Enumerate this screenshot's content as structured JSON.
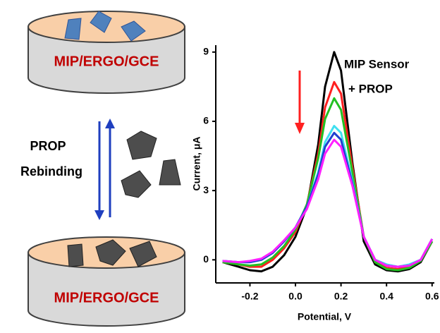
{
  "diagram": {
    "top_label": "MIP/ERGO/GCE",
    "prop_text": "PROP",
    "rebinding_text": "Rebinding",
    "bottom_label": "MIP/ERGO/GCE"
  },
  "chart_data": {
    "type": "line",
    "xlabel": "Potential, V",
    "ylabel": "Current, μA",
    "annotations": [
      "MIP Sensor",
      "+ PROP"
    ],
    "x": [
      -0.32,
      -0.25,
      -0.2,
      -0.15,
      -0.1,
      -0.05,
      0.0,
      0.05,
      0.1,
      0.13,
      0.17,
      0.2,
      0.25,
      0.3,
      0.35,
      0.4,
      0.45,
      0.5,
      0.55,
      0.6
    ],
    "series": [
      {
        "color": "#000000",
        "values": [
          -0.1,
          -0.3,
          -0.45,
          -0.5,
          -0.3,
          0.2,
          1.0,
          2.3,
          5.0,
          7.5,
          9.0,
          8.2,
          4.2,
          0.8,
          -0.2,
          -0.45,
          -0.5,
          -0.4,
          -0.1,
          0.8
        ]
      },
      {
        "color": "#ff2020",
        "values": [
          -0.1,
          -0.2,
          -0.3,
          -0.3,
          0,
          0.5,
          1.2,
          2.4,
          4.6,
          6.6,
          7.7,
          7.2,
          4.0,
          1.0,
          -0.1,
          -0.35,
          -0.4,
          -0.3,
          -0.05,
          0.8
        ]
      },
      {
        "color": "#22c022",
        "values": [
          -0.1,
          -0.2,
          -0.25,
          -0.2,
          0.1,
          0.6,
          1.3,
          2.4,
          4.4,
          6.1,
          7.0,
          6.5,
          3.8,
          1.0,
          -0.1,
          -0.4,
          -0.45,
          -0.35,
          -0.05,
          0.8
        ]
      },
      {
        "color": "#40e0f0",
        "values": [
          -0.05,
          -0.1,
          -0.1,
          0,
          0.3,
          0.8,
          1.4,
          2.3,
          3.8,
          5.1,
          5.8,
          5.5,
          3.4,
          1.0,
          0,
          -0.2,
          -0.3,
          -0.2,
          0,
          0.9
        ]
      },
      {
        "color": "#2040d0",
        "values": [
          -0.05,
          -0.1,
          -0.1,
          0,
          0.3,
          0.8,
          1.4,
          2.3,
          3.7,
          4.9,
          5.5,
          5.2,
          3.3,
          1.0,
          0,
          -0.25,
          -0.3,
          -0.25,
          0,
          0.9
        ]
      },
      {
        "color": "#ff20ff",
        "values": [
          -0.05,
          -0.1,
          -0.05,
          0.05,
          0.35,
          0.85,
          1.4,
          2.2,
          3.5,
          4.6,
          5.2,
          4.9,
          3.2,
          1.0,
          0,
          -0.25,
          -0.3,
          -0.25,
          0,
          0.9
        ]
      }
    ],
    "xlim": [
      -0.35,
      0.61
    ],
    "ylim": [
      -1,
      9.3
    ],
    "xticks": [
      -0.2,
      {
        "value": 0,
        "label": "0.0"
      },
      0.2,
      0.4,
      0.6
    ],
    "yticks": [
      0,
      3,
      6,
      9
    ]
  }
}
